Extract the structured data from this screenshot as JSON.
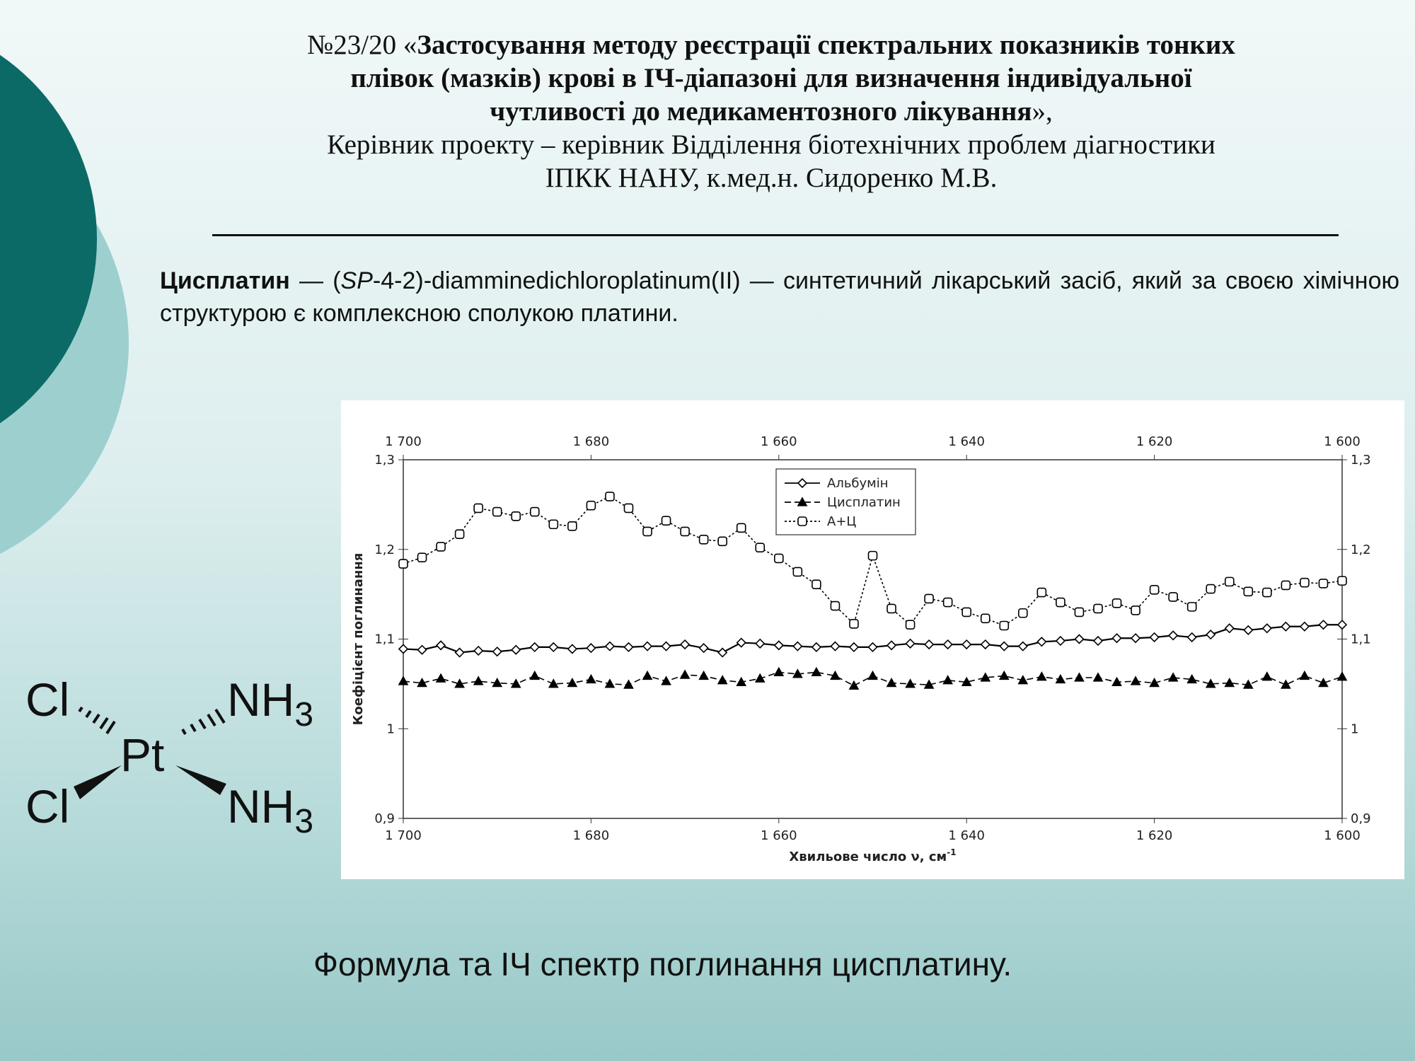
{
  "header": {
    "number": "№23/20 «",
    "title_lines": [
      "Застосування методу реєстрації спектральних показників тонких",
      "плівок (мазків) крові в ІЧ-діапазоні для визначення індивідуальної",
      "чутливості до медикаментозного лікування"
    ],
    "close": "»,",
    "leader": "Керівник проекту – керівник Відділення біотехнічних проблем діагностики",
    "org": "ІПКК НАНУ, к.мед.н. Сидоренко М.В."
  },
  "intro": {
    "term": "Цисплатин",
    "prefix": " — (",
    "italic": "SP",
    "rest": "-4-2)-diamminedichloroplatinum(II) — синтетичний лікарський засіб, який за своєю хімічною структурою є комплексною сполукою платини."
  },
  "formula": {
    "halogen": "Cl",
    "metal": "Pt",
    "ligand": "NH",
    "subscript": "3"
  },
  "caption": "Формула та ІЧ спектр поглинання цисплатину.",
  "chart_data": {
    "type": "line",
    "xlabel": "Хвильове число ν, см",
    "xlabel_sup": "-1",
    "ylabel": "Коефіцієнт поглинання",
    "xlim": [
      1700,
      1600
    ],
    "ylim": [
      0.9,
      1.3
    ],
    "xticks": [
      {
        "value": 1700,
        "label": "1 700"
      },
      {
        "value": 1680,
        "label": "1 680"
      },
      {
        "value": 1660,
        "label": "1 660"
      },
      {
        "value": 1640,
        "label": "1 640"
      },
      {
        "value": 1620,
        "label": "1 620"
      },
      {
        "value": 1600,
        "label": "1 600"
      }
    ],
    "yticks": [
      {
        "value": 0.9,
        "label": "0,9"
      },
      1,
      {
        "value": 1.1,
        "label": "1,1"
      },
      {
        "value": 1.2,
        "label": "1,2"
      },
      {
        "value": 1.3,
        "label": "1,3"
      }
    ],
    "legend": "top-center",
    "x": [
      1700,
      1698,
      1696,
      1694,
      1692,
      1690,
      1688,
      1686,
      1684,
      1682,
      1680,
      1678,
      1676,
      1674,
      1672,
      1670,
      1668,
      1666,
      1664,
      1662,
      1660,
      1658,
      1656,
      1654,
      1652,
      1650,
      1648,
      1646,
      1644,
      1642,
      1640,
      1638,
      1636,
      1634,
      1632,
      1630,
      1628,
      1626,
      1624,
      1622,
      1620,
      1618,
      1616,
      1614,
      1612,
      1610,
      1608,
      1606,
      1604,
      1602,
      1600
    ],
    "series": [
      {
        "name": "Альбумін",
        "color": "#000000",
        "marker": "diamond",
        "dash": "solid",
        "values": [
          1.089,
          1.088,
          1.093,
          1.085,
          1.087,
          1.086,
          1.088,
          1.091,
          1.091,
          1.089,
          1.09,
          1.092,
          1.091,
          1.092,
          1.092,
          1.094,
          1.09,
          1.085,
          1.096,
          1.095,
          1.093,
          1.092,
          1.091,
          1.092,
          1.091,
          1.091,
          1.093,
          1.095,
          1.094,
          1.094,
          1.094,
          1.094,
          1.092,
          1.092,
          1.097,
          1.098,
          1.1,
          1.098,
          1.101,
          1.101,
          1.102,
          1.104,
          1.102,
          1.105,
          1.112,
          1.11,
          1.112,
          1.114,
          1.114,
          1.116,
          1.116
        ]
      },
      {
        "name": "Цисплатин",
        "color": "#000000",
        "marker": "triangle",
        "dash": "dashed",
        "values": [
          1.053,
          1.051,
          1.056,
          1.05,
          1.053,
          1.051,
          1.05,
          1.059,
          1.05,
          1.051,
          1.055,
          1.05,
          1.049,
          1.059,
          1.053,
          1.06,
          1.059,
          1.054,
          1.052,
          1.056,
          1.063,
          1.061,
          1.063,
          1.059,
          1.048,
          1.059,
          1.051,
          1.05,
          1.049,
          1.054,
          1.052,
          1.057,
          1.059,
          1.054,
          1.058,
          1.055,
          1.057,
          1.057,
          1.052,
          1.053,
          1.051,
          1.057,
          1.055,
          1.05,
          1.051,
          1.049,
          1.058,
          1.049,
          1.059,
          1.051,
          1.058
        ]
      },
      {
        "name": "А+Ц",
        "color": "#000000",
        "marker": "square",
        "dash": "dotted",
        "values": [
          1.184,
          1.191,
          1.203,
          1.217,
          1.246,
          1.242,
          1.237,
          1.242,
          1.228,
          1.226,
          1.249,
          1.259,
          1.246,
          1.22,
          1.232,
          1.22,
          1.211,
          1.209,
          1.224,
          1.202,
          1.19,
          1.175,
          1.161,
          1.137,
          1.117,
          1.193,
          1.134,
          1.116,
          1.145,
          1.141,
          1.13,
          1.123,
          1.115,
          1.129,
          1.152,
          1.141,
          1.13,
          1.134,
          1.14,
          1.132,
          1.155,
          1.147,
          1.136,
          1.156,
          1.164,
          1.153,
          1.152,
          1.16,
          1.163,
          1.162,
          1.165
        ]
      }
    ]
  }
}
